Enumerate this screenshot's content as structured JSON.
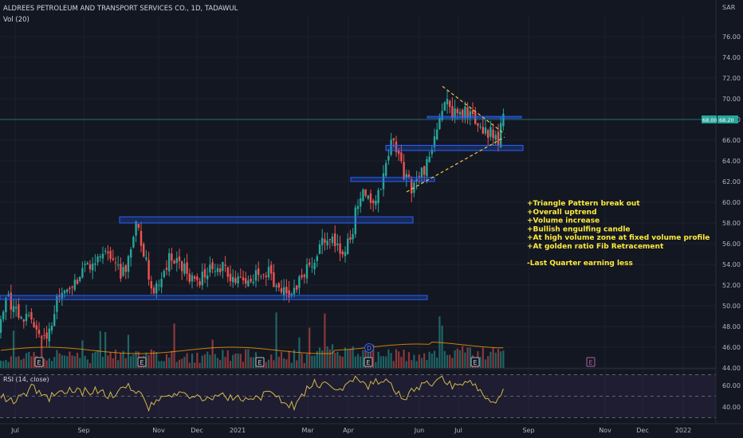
{
  "header": {
    "title": "ALDREES PETROLEUM AND TRANSPORT SERVICES CO., 1D, TADAWUL",
    "volume_label": "Vol (20)",
    "currency": "SAR"
  },
  "price_badges": {
    "last": "68.00",
    "change": "68.20"
  },
  "annotations": {
    "bullets": [
      "+Triangle Pattern break out",
      "+Overall uptrend",
      "+Volume increase",
      "+Bullish engulfing candle",
      "+At high volume zone at fixed volume profile",
      "+At golden ratio Fib Retracement"
    ],
    "negative": "-Last Quarter earning less"
  },
  "events": {
    "earnings_label": "E",
    "dividend_label": "D"
  },
  "colors": {
    "background": "#131722",
    "up": "#26a69a",
    "down": "#ef5350",
    "zone_stroke": "#2962ff",
    "zone_fill": "rgba(41,98,255,0.25)",
    "annotation_text": "#ffeb3b",
    "rsi_line": "#d4b84a",
    "trendline": "#e8c547",
    "text": "#d1d4dc",
    "axis_text": "#b2b5be",
    "grid": "#1e222d"
  },
  "chart_data": [
    {
      "type": "candlestick",
      "title": "ALDREES PETROLEUM AND TRANSPORT SERVICES CO., 1D, TADAWUL",
      "y_axis_ticks": [
        "44.00",
        "46.00",
        "48.00",
        "50.00",
        "52.00",
        "54.00",
        "56.00",
        "58.00",
        "60.00",
        "62.00",
        "64.00",
        "66.00",
        "68.00",
        "70.00",
        "72.00",
        "74.00",
        "76.00"
      ],
      "ylim": [
        43.5,
        77
      ],
      "x_axis_ticks": [
        "Jul",
        "Sep",
        "Nov",
        "Dec",
        "2021",
        "Mar",
        "Apr",
        "Jun",
        "Jul",
        "Sep",
        "Nov",
        "Dec",
        "2022"
      ],
      "price_path": [
        [
          0,
          47.5
        ],
        [
          6,
          50.8
        ],
        [
          16,
          50.2
        ],
        [
          26,
          49.0
        ],
        [
          36,
          49.5
        ],
        [
          48,
          48.0
        ],
        [
          58,
          47.0
        ],
        [
          72,
          50.5
        ],
        [
          86,
          52.2
        ],
        [
          100,
          52.8
        ],
        [
          115,
          54.5
        ],
        [
          128,
          55.5
        ],
        [
          142,
          54.0
        ],
        [
          156,
          53.0
        ],
        [
          170,
          57.8
        ],
        [
          180,
          55.2
        ],
        [
          190,
          52.0
        ],
        [
          200,
          51.5
        ],
        [
          215,
          55.0
        ],
        [
          230,
          54.0
        ],
        [
          242,
          52.5
        ],
        [
          258,
          53.0
        ],
        [
          273,
          54.0
        ],
        [
          290,
          52.5
        ],
        [
          310,
          52.0
        ],
        [
          332,
          53.5
        ],
        [
          352,
          51.5
        ],
        [
          370,
          51.3
        ],
        [
          385,
          53.5
        ],
        [
          400,
          55.5
        ],
        [
          415,
          56.5
        ],
        [
          428,
          55.0
        ],
        [
          440,
          56.5
        ],
        [
          448,
          60.2
        ],
        [
          458,
          61.2
        ],
        [
          468,
          59.8
        ],
        [
          480,
          62.0
        ],
        [
          492,
          65.8
        ],
        [
          505,
          63.0
        ],
        [
          515,
          61.5
        ],
        [
          528,
          62.5
        ],
        [
          540,
          64.5
        ],
        [
          550,
          67.5
        ],
        [
          560,
          70.5
        ],
        [
          572,
          68.0
        ],
        [
          585,
          69.0
        ],
        [
          598,
          67.5
        ],
        [
          612,
          67.0
        ],
        [
          624,
          65.8
        ],
        [
          632,
          68.0
        ]
      ],
      "support_resistance_zones": [
        [
          51.0,
          50.6
        ],
        [
          58.0,
          58.6
        ],
        [
          62.0,
          62.4
        ],
        [
          65.0,
          65.5
        ],
        [
          68.2,
          68.3
        ]
      ],
      "triangle": {
        "upper": [
          [
            555,
            71.2
          ],
          [
            633,
            66.6
          ]
        ],
        "lower": [
          [
            510,
            61.0
          ],
          [
            633,
            66.3
          ]
        ]
      },
      "last_price": 68.0
    },
    {
      "type": "bar",
      "name": "Vol (20)",
      "description_values": "daily volume bars with 20-period moving average"
    },
    {
      "type": "line",
      "name": "RSI (14, close)",
      "y_axis_ticks": [
        "60.00",
        "40.00"
      ],
      "ylim": [
        28,
        72
      ],
      "levels": [
        70,
        50,
        30
      ],
      "rsi_path": [
        [
          0,
          50
        ],
        [
          20,
          45
        ],
        [
          40,
          58
        ],
        [
          60,
          48
        ],
        [
          80,
          56
        ],
        [
          100,
          54
        ],
        [
          120,
          55
        ],
        [
          140,
          50
        ],
        [
          160,
          62
        ],
        [
          175,
          52
        ],
        [
          185,
          38
        ],
        [
          200,
          46
        ],
        [
          220,
          52
        ],
        [
          250,
          48
        ],
        [
          280,
          50
        ],
        [
          310,
          46
        ],
        [
          340,
          52
        ],
        [
          370,
          40
        ],
        [
          390,
          62
        ],
        [
          410,
          60
        ],
        [
          430,
          55
        ],
        [
          445,
          66
        ],
        [
          460,
          58
        ],
        [
          475,
          64
        ],
        [
          490,
          62
        ],
        [
          505,
          48
        ],
        [
          520,
          56
        ],
        [
          540,
          62
        ],
        [
          555,
          66
        ],
        [
          570,
          58
        ],
        [
          590,
          64
        ],
        [
          605,
          52
        ],
        [
          620,
          42
        ],
        [
          632,
          58
        ]
      ]
    }
  ]
}
